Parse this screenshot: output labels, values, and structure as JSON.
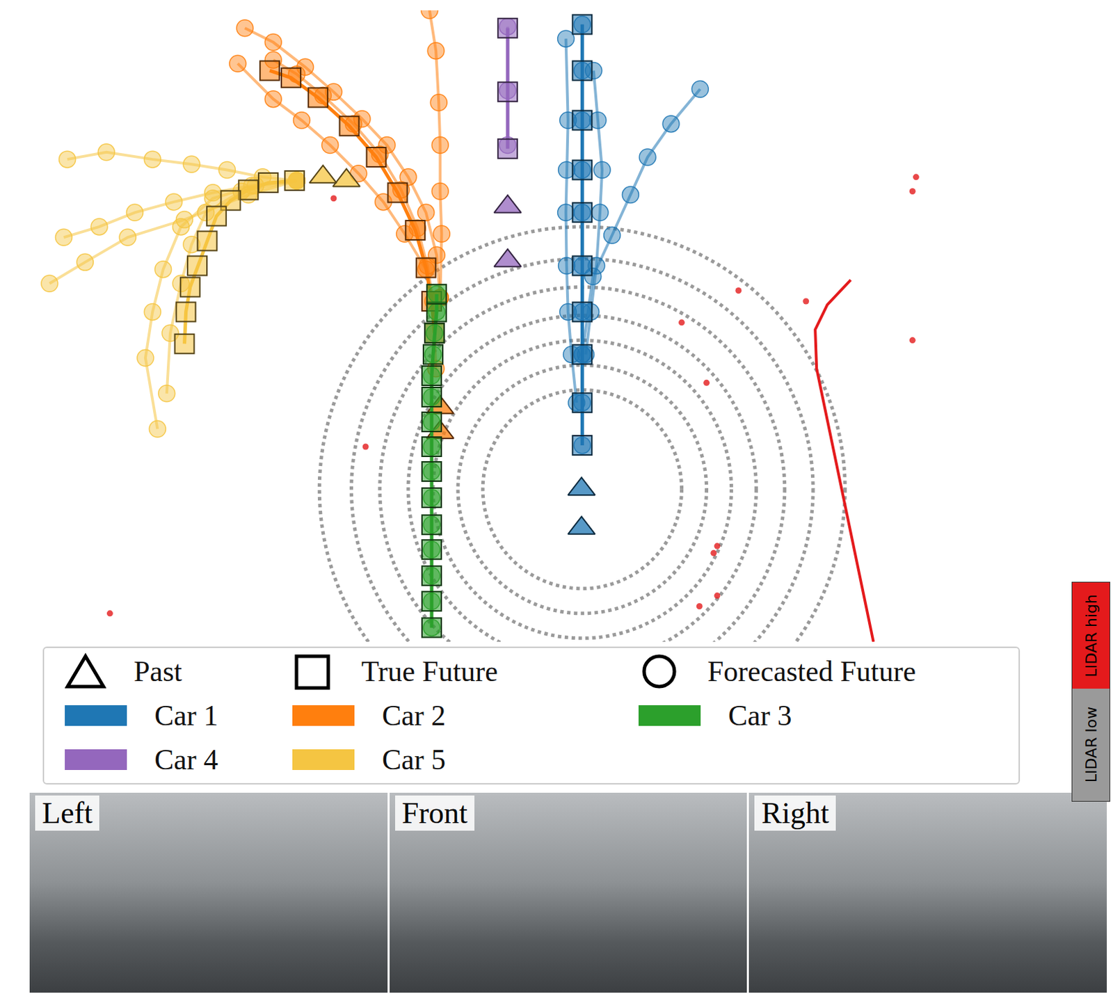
{
  "chart_data": {
    "type": "scatter",
    "tick_labels": false,
    "grid": false,
    "legend": "bottom",
    "xlim": [
      42,
      1510
    ],
    "ylim": [
      905,
      15
    ],
    "legend_markers": [
      {
        "label": "Past",
        "marker": "triangle-up"
      },
      {
        "label": "True Future",
        "marker": "square"
      },
      {
        "label": "Forecasted Future",
        "marker": "circle"
      }
    ],
    "series": [
      {
        "name": "Car 1",
        "color": "#1f77b4",
        "past": {
          "x": [
            819,
            819
          ],
          "y": [
            690,
            745
          ]
        },
        "true_future": {
          "x": [
            820,
            820,
            820,
            820,
            820,
            820,
            820,
            820,
            820,
            820
          ],
          "y": [
            628,
            568,
            500,
            440,
            375,
            300,
            240,
            170,
            100,
            35
          ]
        },
        "forecast": [
          {
            "x": [
              820,
              820,
              820,
              820,
              820,
              820,
              820,
              820,
              820,
              820
            ],
            "y": [
              628,
              568,
              500,
              440,
              375,
              300,
              240,
              170,
              100,
              35
            ]
          },
          {
            "x": [
              812,
              805,
              800,
              798,
              797,
              798,
              800,
              797
            ],
            "y": [
              568,
              500,
              440,
              375,
              300,
              240,
              170,
              55
            ]
          },
          {
            "x": [
              825,
              832,
              840,
              845,
              848,
              842,
              836
            ],
            "y": [
              500,
              440,
              375,
              300,
              240,
              170,
              100
            ]
          },
          {
            "x": [
              820,
              835,
              862,
              888,
              912,
              945,
              986
            ],
            "y": [
              500,
              390,
              332,
              275,
              222,
              175,
              126
            ]
          }
        ]
      },
      {
        "name": "Car 2",
        "color": "#ff7f0e",
        "past": {
          "x": [
            620,
            620
          ],
          "y": [
            575,
            610
          ]
        },
        "true_future": {
          "x": [
            612,
            608,
            600,
            585,
            560,
            530,
            492,
            448,
            410,
            380
          ],
          "y": [
            470,
            425,
            378,
            325,
            272,
            222,
            178,
            138,
            110,
            100
          ]
        },
        "forecast": [
          {
            "x": [
              614,
              610,
              602,
              588,
              565,
              535,
              498,
              455,
              418,
              385
            ],
            "y": [
              520,
              425,
              375,
              322,
              268,
              218,
              175,
              135,
              105,
              85
            ]
          },
          {
            "x": [
              620,
              615,
              600,
              575,
              545,
              510,
              470,
              430,
              385,
              345
            ],
            "y": [
              420,
              360,
              300,
              250,
              205,
              168,
              130,
              95,
              60,
              40
            ]
          },
          {
            "x": [
              620,
              622,
              620,
              620,
              618,
              614,
              605
            ],
            "y": [
              420,
              330,
              270,
              205,
              145,
              72,
              15
            ]
          },
          {
            "x": [
              600,
              570,
              540,
              505,
              465,
              425,
              385,
              335
            ],
            "y": [
              380,
              330,
              285,
              245,
              205,
              170,
              140,
              90
            ]
          }
        ]
      },
      {
        "name": "Car 3",
        "color": "#2ca02c",
        "past": {
          "x": [],
          "y": []
        },
        "true_future": {
          "x": [
            608,
            608,
            608,
            608,
            608,
            608,
            608,
            608,
            608,
            608,
            608,
            610,
            612,
            615,
            615
          ],
          "y": [
            885,
            848,
            812,
            775,
            740,
            702,
            665,
            630,
            595,
            560,
            530,
            500,
            470,
            440,
            415
          ]
        },
        "forecast": [
          {
            "x": [
              608,
              608,
              608,
              608,
              608,
              608,
              608,
              608,
              608,
              608,
              608,
              610,
              612,
              615,
              615
            ],
            "y": [
              885,
              848,
              812,
              775,
              740,
              702,
              665,
              630,
              595,
              560,
              530,
              500,
              470,
              440,
              415
            ]
          }
        ]
      },
      {
        "name": "Car 4",
        "color": "#9467bd",
        "past": {
          "x": [
            715,
            715
          ],
          "y": [
            368,
            292
          ]
        },
        "true_future": {
          "x": [
            715,
            715,
            715
          ],
          "y": [
            210,
            130,
            40
          ]
        },
        "forecast": [
          {
            "x": [
              715,
              715,
              715
            ],
            "y": [
              205,
              128,
              38
            ]
          }
        ]
      },
      {
        "name": "Car 5",
        "color": "#f5c542",
        "past": {
          "x": [
            488,
            455
          ],
          "y": [
            255,
            250
          ]
        },
        "true_future": {
          "x": [
            415,
            378,
            350,
            325,
            305,
            292,
            278,
            268,
            262,
            260
          ],
          "y": [
            255,
            258,
            268,
            283,
            305,
            340,
            375,
            405,
            440,
            485
          ]
        },
        "forecast": [
          {
            "x": [
              418,
              370,
              320,
              270,
              215,
              150,
              95
            ],
            "y": [
              255,
              250,
              240,
              232,
              225,
              215,
              225
            ]
          },
          {
            "x": [
              418,
              355,
              300,
              245,
              190,
              140,
              90
            ],
            "y": [
              255,
              262,
              272,
              285,
              300,
              320,
              335
            ]
          },
          {
            "x": [
              418,
              360,
              300,
              255,
              230,
              215,
              205,
              222
            ],
            "y": [
              255,
              262,
              280,
              320,
              380,
              440,
              505,
              605
            ]
          },
          {
            "x": [
              418,
              350,
              260,
              180,
              120,
              70
            ],
            "y": [
              255,
              275,
              310,
              335,
              370,
              400
            ]
          },
          {
            "x": [
              418,
              340,
              290,
              270,
              255,
              240,
              235
            ],
            "y": [
              255,
              270,
              300,
              345,
              400,
              470,
              555
            ]
          }
        ]
      }
    ],
    "lidar_high": {
      "color": "#e41a1c",
      "line": {
        "x": [
          1198,
          1165,
          1148,
          1150,
          1230
        ],
        "y": [
          395,
          430,
          465,
          520,
          905
        ]
      },
      "points": {
        "x": [
          1290,
          1285,
          1040,
          1135,
          1285,
          995,
          1005,
          985,
          515,
          155,
          960,
          1010,
          470,
          1010
        ],
        "y": [
          250,
          270,
          410,
          425,
          480,
          540,
          780,
          855,
          630,
          865,
          455,
          770,
          280,
          840
        ]
      }
    },
    "lidar_low": {
      "color": "#9a9a9a",
      "center": [
        820,
        690
      ],
      "radii": [
        140,
        175,
        210,
        245,
        285,
        325,
        370
      ]
    },
    "colorbar": {
      "labels": [
        "LIDAR high",
        "LIDAR low"
      ],
      "colors": [
        "#e41a1c",
        "#9a9a9a"
      ]
    },
    "cameras": [
      "Left",
      "Front",
      "Right"
    ]
  }
}
